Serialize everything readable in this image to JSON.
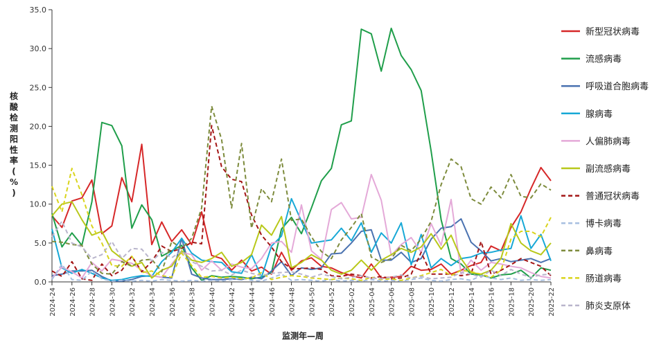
{
  "chart_data": {
    "type": "line",
    "xlabel": "监测年—周",
    "ylabel": "核酸检测阳性率(%)",
    "ylim": [
      0,
      35
    ],
    "yticks": [
      "0.0",
      "5.0",
      "10.0",
      "15.0",
      "20.0",
      "25.0",
      "30.0",
      "35.0"
    ],
    "grid": false,
    "legend_position": "right",
    "categories": [
      "2024-24",
      "2024-25",
      "2024-26",
      "2024-27",
      "2024-28",
      "2024-29",
      "2024-30",
      "2024-31",
      "2024-32",
      "2024-33",
      "2024-34",
      "2024-35",
      "2024-36",
      "2024-37",
      "2024-38",
      "2024-39",
      "2024-40",
      "2024-41",
      "2024-42",
      "2024-43",
      "2024-44",
      "2024-45",
      "2024-46",
      "2024-47",
      "2024-48",
      "2024-49",
      "2024-50",
      "2024-51",
      "2024-52",
      "2025-01",
      "2025-02",
      "2025-03",
      "2025-04",
      "2025-05",
      "2025-06",
      "2025-07",
      "2025-08",
      "2025-09",
      "2025-10",
      "2025-11",
      "2025-12",
      "2025-13",
      "2025-14",
      "2025-15",
      "2025-16",
      "2025-17",
      "2025-18",
      "2025-19",
      "2025-20",
      "2025-21",
      "2025-22"
    ],
    "xtick_labels": [
      "2024-24",
      "2024-26",
      "2024-28",
      "2024-30",
      "2024-32",
      "2024-34",
      "2024-36",
      "2024-38",
      "2024-40",
      "2024-42",
      "2024-44",
      "2024-46",
      "2024-48",
      "2024-50",
      "2024-52",
      "2025-02",
      "2025-04",
      "2025-06",
      "2025-08",
      "2025-10",
      "2025-12",
      "2025-14",
      "2025-16",
      "2025-18",
      "2025-20",
      "2025-22"
    ],
    "series": [
      {
        "name": "新型冠状病毒",
        "color": "#d62728",
        "dash": false,
        "values": [
          8.5,
          7,
          10.4,
          10.8,
          13.1,
          6.2,
          7.2,
          13.4,
          10.3,
          17.7,
          4.8,
          7.7,
          5.2,
          6.7,
          4.8,
          9,
          3.4,
          3,
          1.5,
          2.8,
          1.4,
          1.9,
          1,
          3.8,
          1.5,
          2.7,
          3.1,
          2,
          1.8,
          1.2,
          0.8,
          0.5,
          2.3,
          0.5,
          0.6,
          0.7,
          2,
          1.5,
          1.6,
          2.3,
          1,
          1.5,
          2.1,
          2.5,
          4.6,
          4,
          7,
          9,
          12,
          14.7,
          13
        ]
      },
      {
        "name": "流感病毒",
        "color": "#1f9e4a",
        "dash": false,
        "values": [
          8.8,
          4.5,
          6.3,
          4.7,
          10.3,
          20.5,
          20.1,
          17.5,
          6.9,
          9.9,
          8,
          3.3,
          4,
          4.7,
          1.8,
          0.2,
          0.8,
          0.6,
          0.7,
          0.6,
          0.4,
          0.6,
          1.2,
          6.8,
          8.3,
          6.2,
          9.5,
          13,
          14.6,
          20.2,
          20.7,
          32.5,
          31.9,
          27.1,
          32.6,
          29.1,
          27.3,
          24.6,
          16.8,
          8,
          3,
          2.3,
          1,
          0.9,
          0.5,
          0.9,
          1,
          1.5,
          0.5,
          1.8,
          1.5
        ]
      },
      {
        "name": "呼吸道合胞病毒",
        "color": "#4a72b0",
        "dash": false,
        "values": [
          0.8,
          1,
          1.4,
          1.4,
          1.5,
          0.7,
          0.1,
          0.1,
          0.3,
          0.7,
          0.8,
          0.6,
          0.5,
          5.6,
          1,
          0.5,
          0.3,
          0.3,
          0.4,
          0.3,
          0.6,
          0.4,
          1.4,
          2.6,
          0.8,
          1.8,
          1.6,
          1.8,
          3.6,
          3.7,
          5,
          6.5,
          6.7,
          2.8,
          2.8,
          3.8,
          2.5,
          3,
          5.5,
          6.9,
          7.1,
          8.1,
          5.1,
          4,
          2.7,
          3,
          2.6,
          2.8,
          3,
          2.5,
          3
        ]
      },
      {
        "name": "腺病毒",
        "color": "#17a8d6",
        "dash": false,
        "values": [
          6.8,
          1.8,
          1.1,
          1.6,
          1.1,
          0.5,
          0.2,
          0.3,
          0.6,
          0.8,
          0.7,
          2.6,
          3.8,
          5.6,
          3.7,
          2.8,
          2.6,
          2.5,
          1.3,
          1.1,
          3.5,
          0.6,
          4.6,
          5.9,
          10.7,
          7.8,
          5,
          5.2,
          5.4,
          6.9,
          5.3,
          7.6,
          3.8,
          6.3,
          5,
          7.6,
          2.2,
          6.1,
          1.8,
          3,
          2.1,
          3,
          3.2,
          3.7,
          3.8,
          4.1,
          4.3,
          8.5,
          4.3,
          6.1,
          2.7
        ]
      },
      {
        "name": "人偏肺病毒",
        "color": "#e4a9d8",
        "dash": false,
        "values": [
          0.5,
          1.9,
          1.3,
          0.5,
          2.5,
          1.4,
          2.9,
          2.7,
          2.4,
          1.5,
          0.8,
          0.6,
          2.3,
          3.8,
          3.5,
          1.5,
          2.7,
          1.5,
          2.3,
          1.9,
          1.7,
          3,
          5,
          5.2,
          3.8,
          9.9,
          4,
          2.9,
          9.3,
          10.2,
          8.1,
          8.3,
          13.8,
          10.5,
          3.4,
          4.8,
          5.7,
          3.8,
          7.5,
          4.7,
          10.6,
          1,
          2.8,
          1.5,
          2.5,
          2.3,
          2,
          1.8,
          1.2,
          0.7,
          0.5
        ]
      },
      {
        "name": "副流感病毒",
        "color": "#b8c81a",
        "dash": false,
        "values": [
          8.5,
          10,
          10.3,
          8,
          6,
          6.5,
          4,
          3,
          2,
          2.5,
          0.5,
          1.5,
          2,
          4,
          2.8,
          2.5,
          3,
          3.8,
          2,
          2.5,
          3.5,
          7.3,
          6,
          8.4,
          1.8,
          2.5,
          3.5,
          2.8,
          1.5,
          1,
          1.5,
          2.8,
          1.5,
          2.8,
          3.5,
          4.3,
          3.8,
          4.5,
          6.2,
          4.2,
          6,
          3,
          1.2,
          1,
          1.5,
          3,
          7.5,
          5,
          4,
          3.5,
          5
        ]
      },
      {
        "name": "普通冠状病毒",
        "color": "#a31515",
        "dash": true,
        "values": [
          1.4,
          0.7,
          2.6,
          0.4,
          0.2,
          2.3,
          0.8,
          1.5,
          3.3,
          1.3,
          2.6,
          4.6,
          3.9,
          4.3,
          5.1,
          4.9,
          20.1,
          14.8,
          13.2,
          12.9,
          8.6,
          6,
          4.5,
          2.6,
          1.7,
          1.7,
          1.8,
          1.6,
          0.8,
          0.7,
          1,
          0.8,
          0.5,
          0.7,
          0.4,
          0.5,
          1,
          3.8,
          1,
          1,
          1,
          0.8,
          1,
          5.2,
          1,
          1.5,
          2.2,
          3,
          2.5,
          2,
          0.8
        ]
      },
      {
        "name": "博卡病毒",
        "color": "#a7bfe0",
        "dash": true,
        "values": [
          0.3,
          2.3,
          0.3,
          0.2,
          1.4,
          0.4,
          0.1,
          0.2,
          0.1,
          0.2,
          0.1,
          0.3,
          0.2,
          0.1,
          0.2,
          0.1,
          0.2,
          0.1,
          0.3,
          0.5,
          0.2,
          0.1,
          0.5,
          1,
          0.2,
          0.3,
          0.2,
          0.1,
          0.3,
          0.1,
          0.2,
          0.1,
          0.3,
          0.1,
          0.2,
          0.1,
          0.3,
          0.5,
          0.2,
          0.1,
          0.3,
          0.4,
          0.2,
          0.8,
          0.5,
          0.3,
          0.5,
          0.2,
          0.3,
          0.2,
          0.3
        ]
      },
      {
        "name": "鼻病毒",
        "color": "#7d8b3c",
        "dash": true,
        "values": [
          5.2,
          5.1,
          4.8,
          4.7,
          2.3,
          1.1,
          1,
          2.6,
          2,
          2.8,
          2.9,
          1.3,
          5.2,
          4.3,
          5.6,
          9.5,
          22.6,
          18.3,
          9.5,
          17.8,
          6.9,
          12,
          10.3,
          15.8,
          7.9,
          8.1,
          5.8,
          3.9,
          3,
          5.4,
          7,
          8.8,
          3.2,
          2.5,
          3,
          4.7,
          4,
          5.5,
          7.8,
          12.5,
          15.8,
          14.8,
          10.7,
          10,
          12.2,
          10.8,
          13.8,
          11,
          10.8,
          12.6,
          11.8
        ]
      },
      {
        "name": "肠道病毒",
        "color": "#d9d41c",
        "dash": true,
        "values": [
          12.3,
          9,
          14.6,
          11.2,
          7.2,
          5,
          2.1,
          2,
          3.3,
          1.2,
          1.4,
          0.8,
          0.6,
          3.7,
          2.1,
          0.6,
          0.7,
          0.5,
          0.6,
          0.4,
          0.5,
          1.2,
          0.3,
          0.6,
          0.8,
          0.7,
          0.5,
          0.4,
          0.3,
          0.5,
          0.4,
          0.2,
          0.6,
          0.3,
          0.4,
          0.2,
          0.5,
          0.8,
          1.2,
          1.6,
          0.8,
          1.5,
          1.3,
          1,
          0.6,
          1.5,
          5.5,
          6.5,
          6.5,
          5.8,
          8.3
        ]
      },
      {
        "name": "肺炎支原体",
        "color": "#b9b5cc",
        "dash": true,
        "values": [
          5.8,
          7.8,
          5,
          4.5,
          3,
          3.5,
          5.2,
          3,
          4.3,
          4.2,
          2.7,
          3.8,
          3.1,
          4,
          2.6,
          2,
          1.4,
          1.5,
          0.9,
          1.5,
          1.1,
          0.8,
          1.1,
          1.2,
          1.3,
          1,
          0.6,
          1,
          0.7,
          0.4,
          0.6,
          0.8,
          0.5,
          0.4,
          0.6,
          0.9,
          0.5,
          0.7,
          0.4,
          0.5,
          0.6,
          1.2,
          1,
          0.6,
          1.5,
          0.8,
          1.6,
          1,
          0.6,
          0.9,
          1
        ]
      }
    ]
  }
}
